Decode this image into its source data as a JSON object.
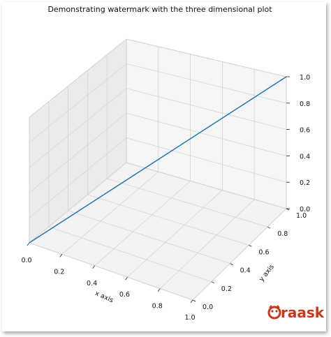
{
  "chart_data": {
    "type": "line",
    "projection": "3d",
    "title": "Demonstrating watermark with the three dimensional plot",
    "xlabel": "x axis",
    "ylabel": "y axis",
    "zlabel": "",
    "xlim": [
      0,
      1
    ],
    "ylim": [
      0,
      1
    ],
    "zlim": [
      0,
      1
    ],
    "xticks": [
      "0.0",
      "0.2",
      "0.4",
      "0.6",
      "0.8",
      "1.0"
    ],
    "yticks": [
      "0.0",
      "0.2",
      "0.4",
      "0.6",
      "0.8",
      "1.0"
    ],
    "zticks": [
      "0.0",
      "0.2",
      "0.4",
      "0.6",
      "0.8",
      "1.0"
    ],
    "grid": true,
    "series": [
      {
        "x": [
          0,
          1
        ],
        "y": [
          0,
          1
        ],
        "z": [
          0,
          1
        ],
        "color": "#1f77b4"
      }
    ],
    "watermark": {
      "text": "raask",
      "icon": "owl-logo-icon",
      "color": "#c9361a"
    }
  }
}
